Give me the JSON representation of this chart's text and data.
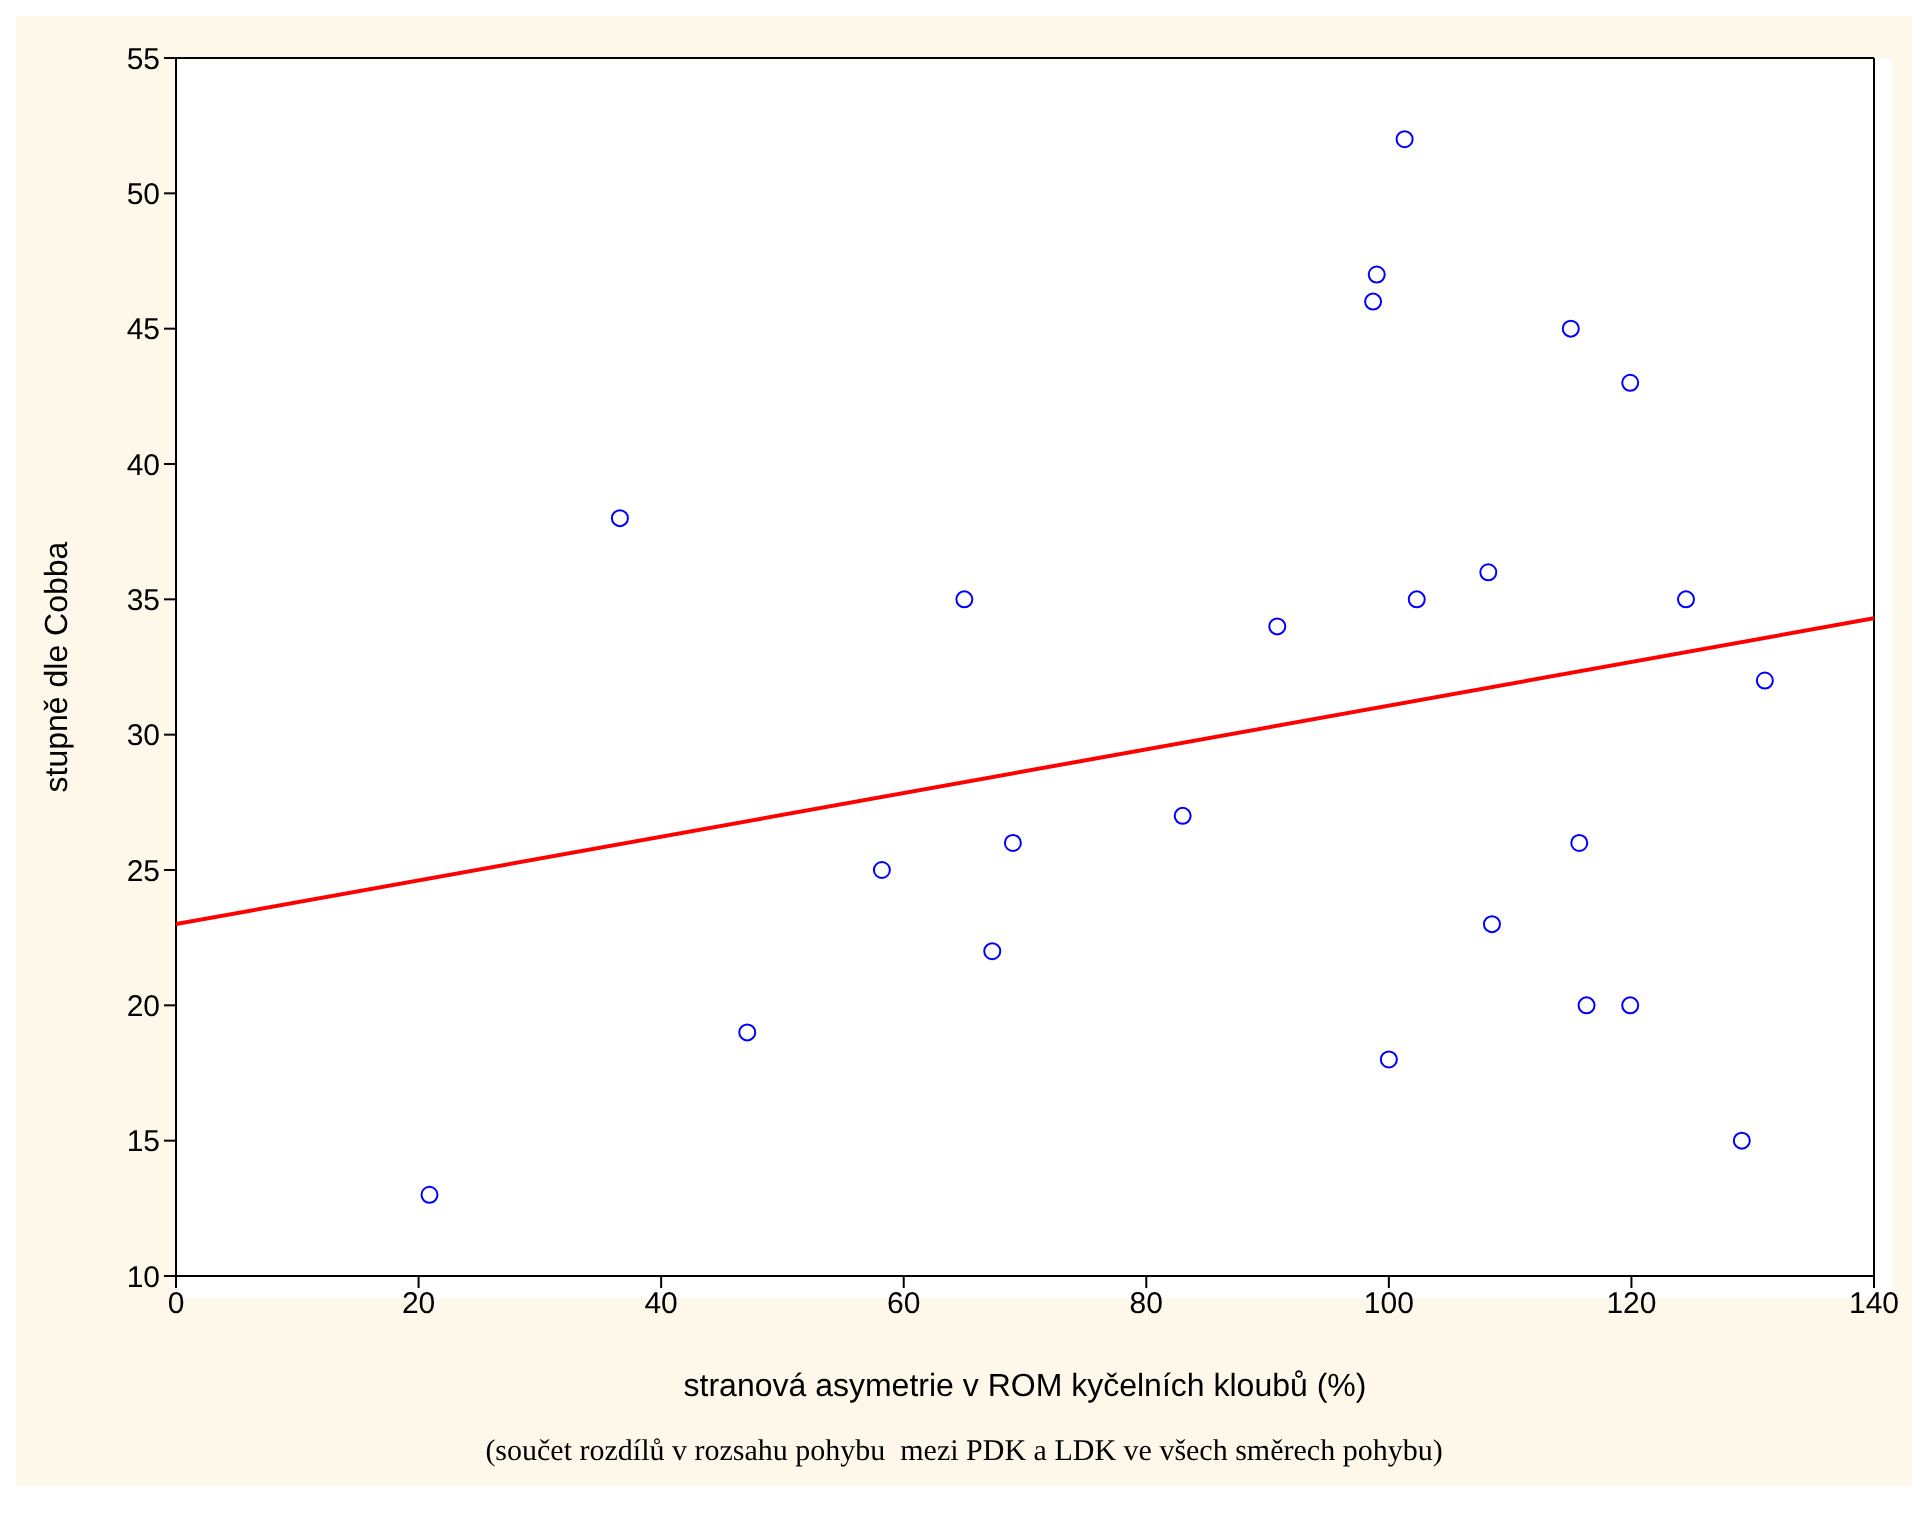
{
  "chart_data": {
    "type": "scatter",
    "xlabel": "stranová asymetrie v ROM kyčelních kloubů (%)",
    "ylabel": "stupně dle Cobba",
    "annotations": [
      "(součet rozdílů v rozsahu pohybu  mezi PDK a LDK ve všech směrech pohybu)"
    ],
    "xlim": [
      0,
      140
    ],
    "xticks": [
      0,
      20,
      40,
      60,
      80,
      100,
      120,
      140
    ],
    "ylim": [
      10,
      55
    ],
    "yticks": [
      10,
      15,
      20,
      25,
      30,
      35,
      40,
      45,
      50,
      55
    ],
    "grid": false,
    "legend": false,
    "marker": "circle",
    "series": [
      {
        "type": "scatter",
        "color": "#0000ff",
        "x": [
          20.9,
          36.6,
          47.1,
          58.2,
          65,
          67.3,
          69,
          83,
          90.8,
          98.7,
          99,
          100,
          101.3,
          102.3,
          108.2,
          108.5,
          115,
          115.7,
          116.3,
          119.9,
          119.9,
          124.5,
          129.1,
          131
        ],
        "values": [
          13,
          38,
          19,
          25,
          35,
          22,
          26,
          27,
          34,
          46,
          47,
          18,
          52,
          35,
          36,
          23,
          45,
          26,
          20,
          43,
          20,
          35,
          15,
          32
        ]
      },
      {
        "type": "line",
        "color": "#ff0000",
        "marker": "none",
        "line_style": "solid",
        "x": [
          0,
          140
        ],
        "values": [
          23,
          34.3
        ]
      }
    ]
  }
}
